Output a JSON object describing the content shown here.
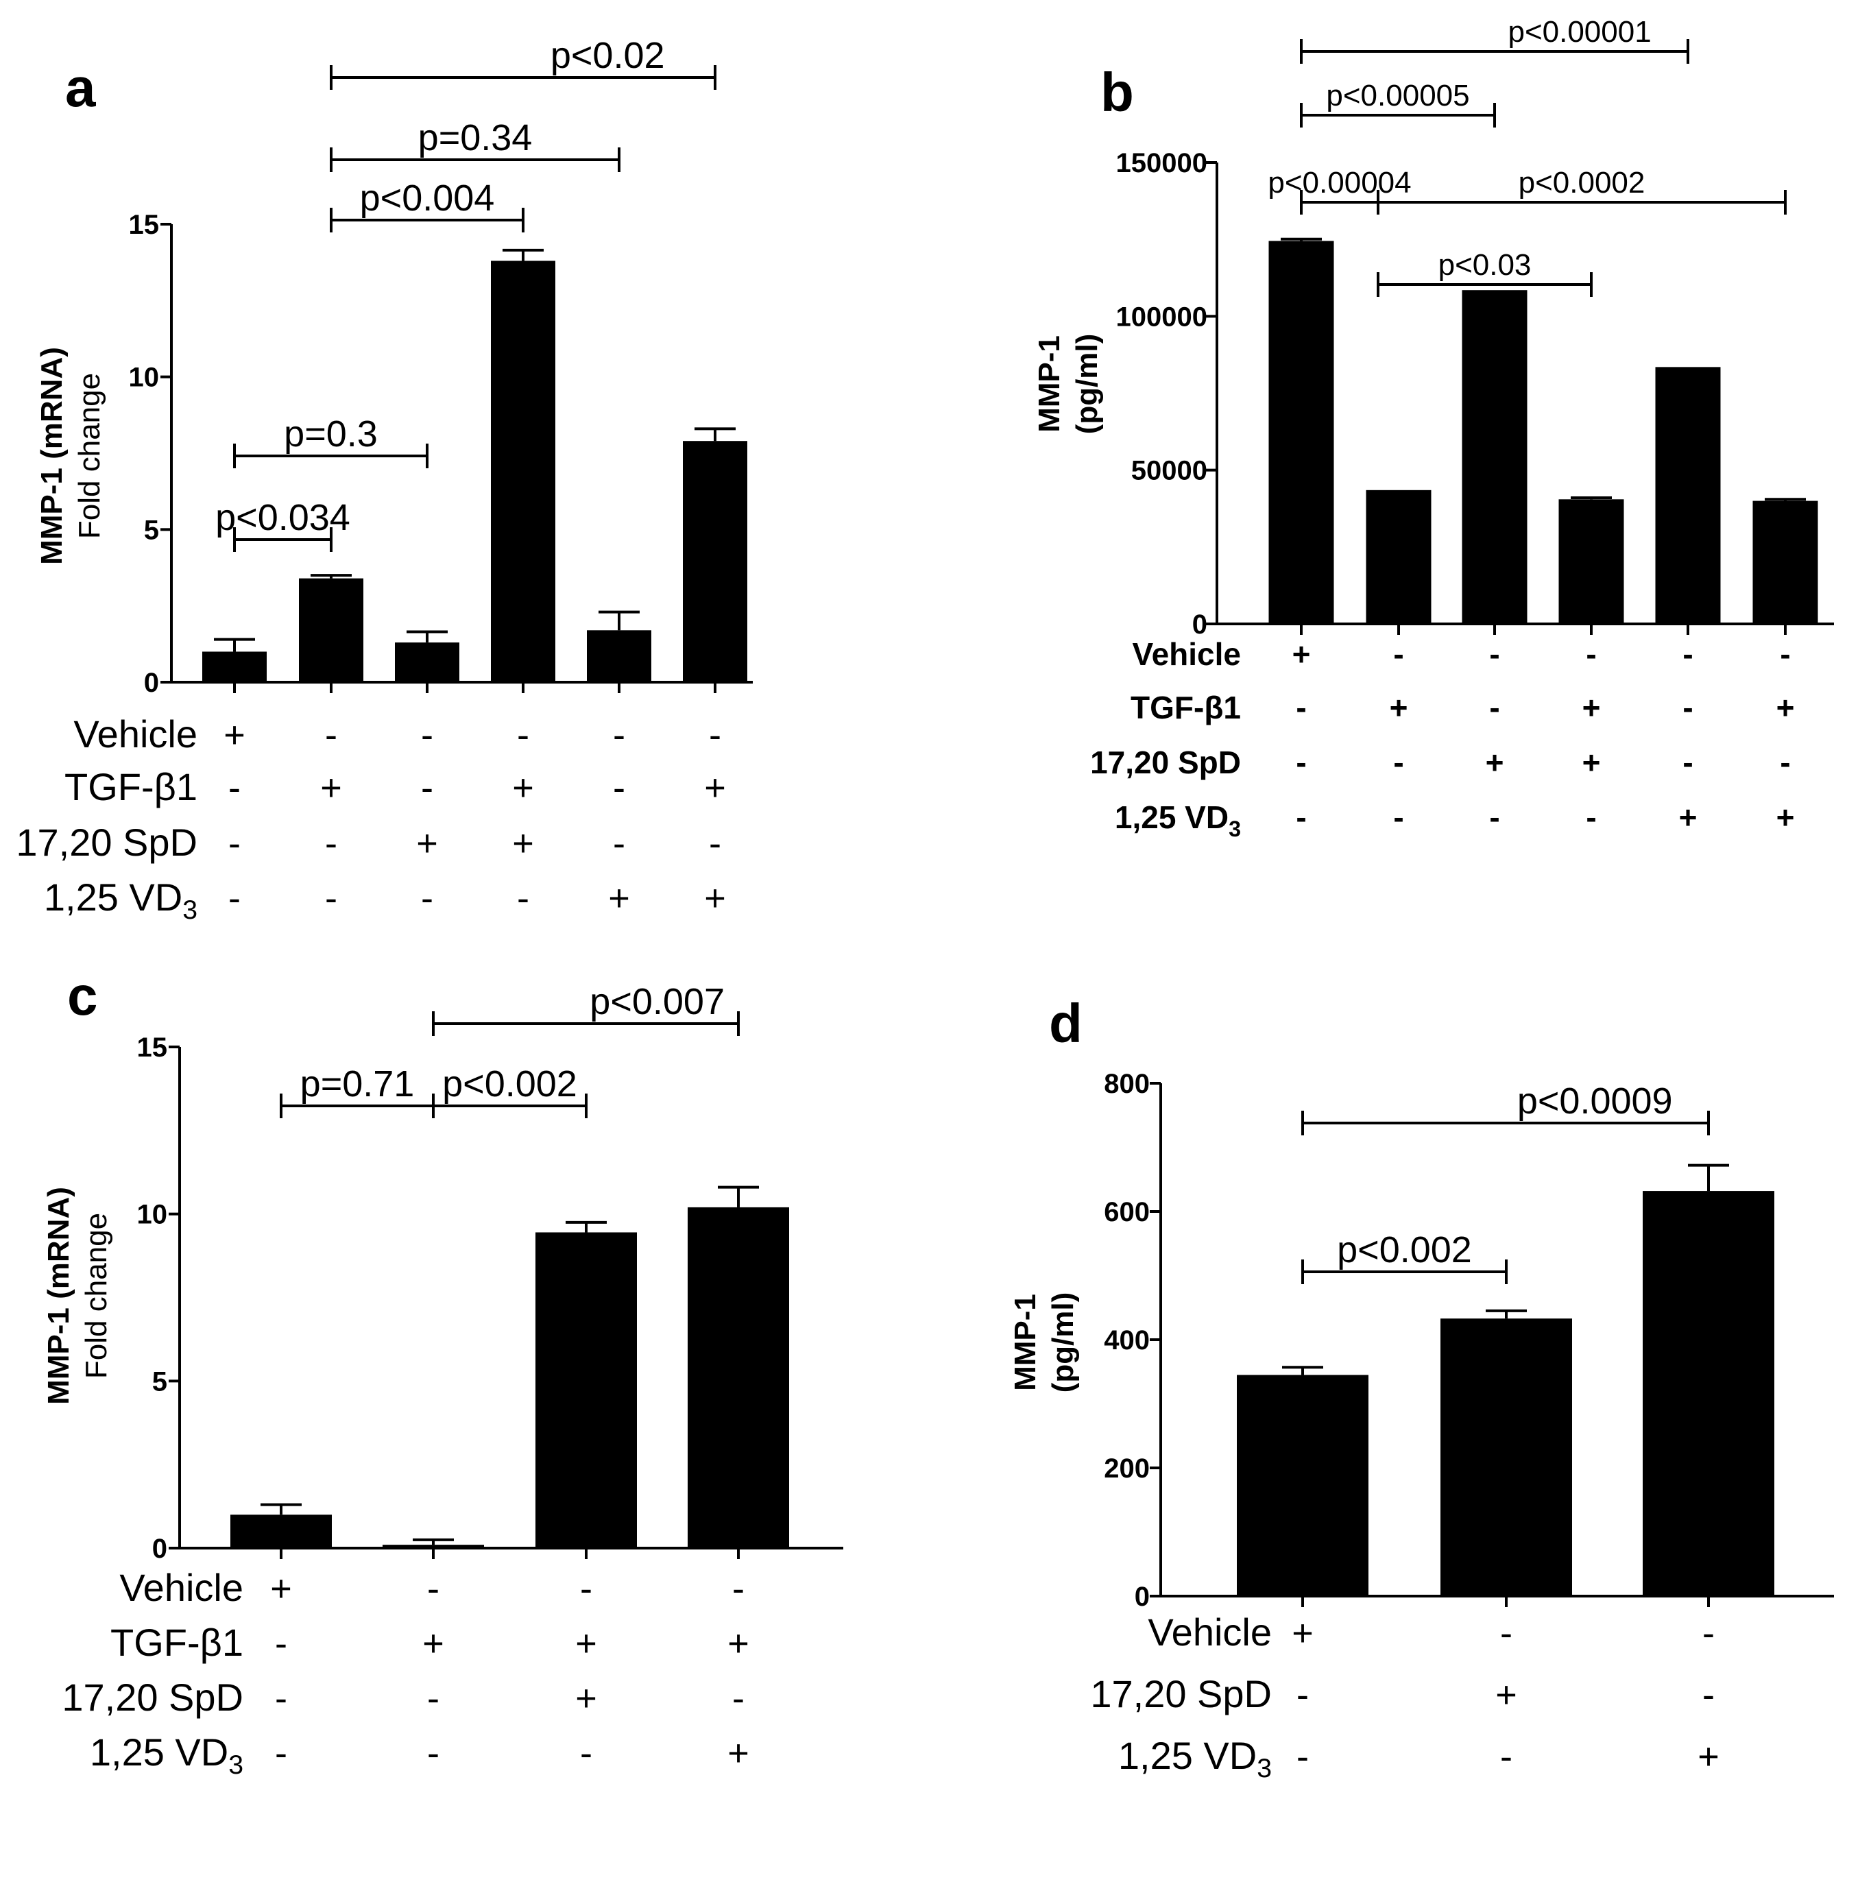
{
  "chart_data": [
    {
      "panel": "a",
      "type": "bar",
      "ylabel_lines": [
        "MMP-1 (mRNA)",
        "Fold change"
      ],
      "ylim": [
        0,
        15
      ],
      "yticks": [
        0,
        5,
        10,
        15
      ],
      "ytick_labels": [
        "0",
        "5",
        "10",
        "15"
      ],
      "values": [
        1.0,
        3.4,
        1.3,
        13.8,
        1.7,
        7.9
      ],
      "errors": [
        0.4,
        0.1,
        0.35,
        0.35,
        0.6,
        0.4
      ],
      "treatments": [
        {
          "label": "Vehicle",
          "signs": [
            "+",
            "-",
            "-",
            "-",
            "-",
            "-"
          ]
        },
        {
          "label": "TGF-β1",
          "signs": [
            "-",
            "+",
            "-",
            "+",
            "-",
            "+"
          ]
        },
        {
          "label": "17,20 SpD",
          "signs": [
            "-",
            "-",
            "+",
            "+",
            "-",
            "-"
          ]
        },
        {
          "label": "1,25 VD",
          "sub": "3",
          "signs": [
            "-",
            "-",
            "-",
            "-",
            "+",
            "+"
          ]
        }
      ],
      "comparisons": [
        {
          "from": 1,
          "to": 5,
          "label": "p<0.02"
        },
        {
          "from": 1,
          "to": 4,
          "label": "p=0.34"
        },
        {
          "from": 1,
          "to": 3,
          "label": "p<0.004"
        },
        {
          "from": 0,
          "to": 2,
          "label": "p=0.3"
        },
        {
          "from": 0,
          "to": 1,
          "label": "p<0.034"
        }
      ]
    },
    {
      "panel": "b",
      "type": "bar",
      "ylabel_lines": [
        "MMP-1",
        "(pg/ml)"
      ],
      "ylim": [
        0,
        150000
      ],
      "yticks": [
        0,
        50000,
        100000,
        150000
      ],
      "ytick_labels": [
        "0",
        "50000",
        "100000",
        "150000"
      ],
      "values": [
        124500,
        43500,
        108500,
        40500,
        83500,
        40000
      ],
      "errors": [
        600,
        0,
        0,
        500,
        0,
        500
      ],
      "treatments": [
        {
          "label": "Vehicle",
          "signs": [
            "+",
            "-",
            "-",
            "-",
            "-",
            "-"
          ]
        },
        {
          "label": "TGF-β1",
          "signs": [
            "-",
            "+",
            "-",
            "+",
            "-",
            "+"
          ]
        },
        {
          "label": "17,20 SpD",
          "signs": [
            "-",
            "-",
            "+",
            "+",
            "-",
            "-"
          ]
        },
        {
          "label": "1,25 VD",
          "sub": "3",
          "signs": [
            "-",
            "-",
            "-",
            "-",
            "+",
            "+"
          ]
        }
      ],
      "comparisons": [
        {
          "from": 0,
          "to": 4,
          "label": "p<0.00001"
        },
        {
          "from": 0,
          "to": 2,
          "label": "p<0.00005"
        },
        {
          "from": 0,
          "to": 1,
          "label": "p<0.00004"
        },
        {
          "from": 1,
          "to": 5,
          "label": "p<0.0002"
        },
        {
          "from": 1,
          "to": 3,
          "label": "p<0.03"
        }
      ]
    },
    {
      "panel": "c",
      "type": "bar",
      "ylabel_lines": [
        "MMP-1 (mRNA)",
        "Fold change"
      ],
      "ylim": [
        0,
        15
      ],
      "yticks": [
        0,
        5,
        10,
        15
      ],
      "ytick_labels": [
        "0",
        "5",
        "10",
        "15"
      ],
      "values": [
        1.0,
        0.1,
        9.45,
        10.2
      ],
      "errors": [
        0.3,
        0.15,
        0.3,
        0.6
      ],
      "treatments": [
        {
          "label": "Vehicle",
          "signs": [
            "+",
            "-",
            "-",
            "-"
          ]
        },
        {
          "label": "TGF-β1",
          "signs": [
            "-",
            "+",
            "+",
            "+"
          ]
        },
        {
          "label": "17,20 SpD",
          "signs": [
            "-",
            "-",
            "+",
            "-"
          ]
        },
        {
          "label": "1,25 VD",
          "sub": "3",
          "signs": [
            "-",
            "-",
            "-",
            "+"
          ]
        }
      ],
      "comparisons": [
        {
          "from": 1,
          "to": 3,
          "label": "p<0.007"
        },
        {
          "from": 0,
          "to": 1,
          "label": "p=0.71"
        },
        {
          "from": 1,
          "to": 2,
          "label": "p<0.002"
        }
      ]
    },
    {
      "panel": "d",
      "type": "bar",
      "ylabel_lines": [
        "MMP-1",
        "(pg/ml)"
      ],
      "ylim": [
        0,
        800
      ],
      "yticks": [
        0,
        200,
        400,
        600,
        800
      ],
      "ytick_labels": [
        "0",
        "200",
        "400",
        "600",
        "800"
      ],
      "values": [
        345,
        433,
        632
      ],
      "errors": [
        12,
        12,
        40
      ],
      "treatments": [
        {
          "label": "Vehicle",
          "signs": [
            "+",
            "-",
            "-"
          ]
        },
        {
          "label": "17,20 SpD",
          "signs": [
            "-",
            "+",
            "-"
          ]
        },
        {
          "label": "1,25 VD",
          "sub": "3",
          "signs": [
            "-",
            "-",
            "+"
          ]
        }
      ],
      "comparisons": [
        {
          "from": 0,
          "to": 2,
          "label": "p<0.0009"
        },
        {
          "from": 0,
          "to": 1,
          "label": "p<0.002"
        }
      ]
    }
  ]
}
